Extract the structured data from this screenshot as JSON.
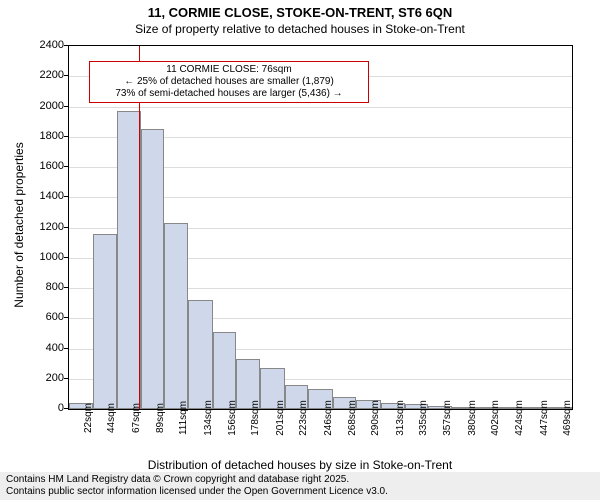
{
  "title": {
    "main": "11, CORMIE CLOSE, STOKE-ON-TRENT, ST6 6QN",
    "sub": "Size of property relative to detached houses in Stoke-on-Trent"
  },
  "chart": {
    "type": "histogram",
    "plot_background": "#ffffff",
    "bar_fill": "#ced8ea",
    "bar_stroke": "#888888",
    "grid_color": "#dddddd",
    "ref_line_color": "#cc0000",
    "ref_value": 76,
    "x_min": 11,
    "x_max": 480,
    "y_min": 0,
    "y_max": 2400,
    "y_ticks": [
      0,
      200,
      400,
      600,
      800,
      1000,
      1200,
      1400,
      1600,
      1800,
      2000,
      2200,
      2400
    ],
    "x_tick_labels": [
      "22sqm",
      "44sqm",
      "67sqm",
      "89sqm",
      "111sqm",
      "134sqm",
      "156sqm",
      "178sqm",
      "201sqm",
      "223sqm",
      "246sqm",
      "268sqm",
      "290sqm",
      "313sqm",
      "335sqm",
      "357sqm",
      "380sqm",
      "402sqm",
      "424sqm",
      "447sqm",
      "469sqm"
    ],
    "x_tick_positions": [
      22,
      44,
      67,
      89,
      111,
      134,
      156,
      178,
      201,
      223,
      246,
      268,
      290,
      313,
      335,
      357,
      380,
      402,
      424,
      447,
      469
    ],
    "bars": [
      {
        "start": 11,
        "end": 33,
        "value": 40
      },
      {
        "start": 33,
        "end": 56,
        "value": 1160
      },
      {
        "start": 56,
        "end": 78,
        "value": 1970
      },
      {
        "start": 78,
        "end": 100,
        "value": 1850
      },
      {
        "start": 100,
        "end": 122,
        "value": 1230
      },
      {
        "start": 122,
        "end": 145,
        "value": 720
      },
      {
        "start": 145,
        "end": 167,
        "value": 510
      },
      {
        "start": 167,
        "end": 189,
        "value": 330
      },
      {
        "start": 189,
        "end": 212,
        "value": 270
      },
      {
        "start": 212,
        "end": 234,
        "value": 160
      },
      {
        "start": 234,
        "end": 257,
        "value": 130
      },
      {
        "start": 257,
        "end": 279,
        "value": 80
      },
      {
        "start": 279,
        "end": 302,
        "value": 60
      },
      {
        "start": 302,
        "end": 324,
        "value": 40
      },
      {
        "start": 324,
        "end": 346,
        "value": 30
      },
      {
        "start": 346,
        "end": 368,
        "value": 20
      },
      {
        "start": 368,
        "end": 391,
        "value": 15
      },
      {
        "start": 391,
        "end": 413,
        "value": 12
      },
      {
        "start": 413,
        "end": 435,
        "value": 8
      },
      {
        "start": 435,
        "end": 458,
        "value": 6
      },
      {
        "start": 458,
        "end": 480,
        "value": 5
      }
    ]
  },
  "callout": {
    "line1": "11 CORMIE CLOSE: 76sqm",
    "line2": "← 25% of detached houses are smaller (1,879)",
    "line3": "73% of semi-detached houses are larger (5,436) →"
  },
  "axes": {
    "y_title": "Number of detached properties",
    "x_title": "Distribution of detached houses by size in Stoke-on-Trent"
  },
  "attribution": {
    "line1": "Contains HM Land Registry data © Crown copyright and database right 2025.",
    "line2": "Contains public sector information licensed under the Open Government Licence v3.0."
  }
}
